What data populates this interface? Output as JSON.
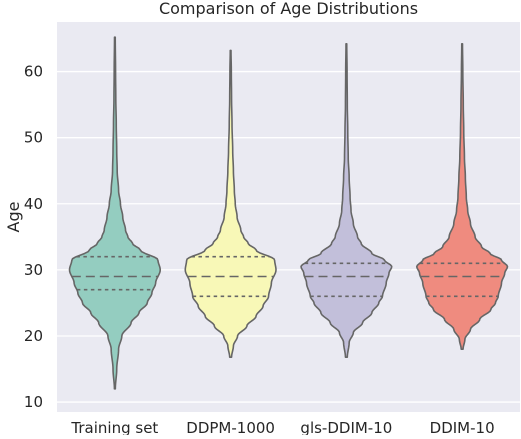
{
  "chart_data": {
    "type": "violin",
    "title": "Comparison of Age Distributions",
    "xlabel": "",
    "ylabel": "Age",
    "ylim": [
      8.5,
      67.5
    ],
    "yticks": [
      10,
      20,
      30,
      40,
      50,
      60
    ],
    "grid": true,
    "colors": {
      "background": "#eaeaf2",
      "grid": "#ffffff",
      "outline": "#666666",
      "text": "#262626"
    },
    "categories": [
      "Training set",
      "DDPM-1000",
      "gls-DDIM-10",
      "DDIM-10"
    ],
    "series": [
      {
        "color": "#94cdc0",
        "min": 12,
        "max": 65.2,
        "quartiles": [
          27,
          29,
          32
        ],
        "profile": [
          [
            12,
            0.01
          ],
          [
            15,
            0.04
          ],
          [
            18,
            0.08
          ],
          [
            20,
            0.15
          ],
          [
            22,
            0.35
          ],
          [
            23.5,
            0.52
          ],
          [
            25,
            0.7
          ],
          [
            26.5,
            0.8
          ],
          [
            28,
            0.88
          ],
          [
            30,
            0.98
          ],
          [
            31.5,
            0.93
          ],
          [
            33,
            0.55
          ],
          [
            34,
            0.38
          ],
          [
            35,
            0.28
          ],
          [
            36,
            0.23
          ],
          [
            38,
            0.17
          ],
          [
            40,
            0.12
          ],
          [
            42,
            0.08
          ],
          [
            45,
            0.05
          ],
          [
            48,
            0.04
          ],
          [
            52,
            0.03
          ],
          [
            56,
            0.02
          ],
          [
            60,
            0.015
          ],
          [
            65.2,
            0.008
          ]
        ]
      },
      {
        "color": "#f8f8b7",
        "min": 16.8,
        "max": 63.2,
        "quartiles": [
          26,
          29,
          32
        ],
        "profile": [
          [
            16.8,
            0.02
          ],
          [
            18.5,
            0.06
          ],
          [
            20,
            0.15
          ],
          [
            21.5,
            0.35
          ],
          [
            23,
            0.55
          ],
          [
            24.5,
            0.7
          ],
          [
            26,
            0.82
          ],
          [
            28,
            0.88
          ],
          [
            30,
            0.98
          ],
          [
            31.5,
            0.95
          ],
          [
            33,
            0.55
          ],
          [
            34,
            0.38
          ],
          [
            35,
            0.28
          ],
          [
            36,
            0.22
          ],
          [
            38,
            0.14
          ],
          [
            40,
            0.1
          ],
          [
            42,
            0.08
          ],
          [
            45,
            0.06
          ],
          [
            48,
            0.045
          ],
          [
            52,
            0.03
          ],
          [
            56,
            0.02
          ],
          [
            60,
            0.015
          ],
          [
            63.2,
            0.008
          ]
        ]
      },
      {
        "color": "#c2bfda",
        "min": 16.8,
        "max": 64.2,
        "quartiles": [
          26,
          29,
          31
        ],
        "profile": [
          [
            16.8,
            0.02
          ],
          [
            19,
            0.06
          ],
          [
            20.5,
            0.15
          ],
          [
            22,
            0.35
          ],
          [
            23.5,
            0.55
          ],
          [
            25,
            0.7
          ],
          [
            26,
            0.78
          ],
          [
            28,
            0.86
          ],
          [
            29.5,
            0.92
          ],
          [
            30.5,
            0.98
          ],
          [
            31.5,
            0.82
          ],
          [
            32.5,
            0.55
          ],
          [
            34,
            0.32
          ],
          [
            35,
            0.24
          ],
          [
            37,
            0.15
          ],
          [
            39,
            0.1
          ],
          [
            41,
            0.08
          ],
          [
            44,
            0.06
          ],
          [
            47,
            0.04
          ],
          [
            51,
            0.03
          ],
          [
            55,
            0.02
          ],
          [
            60,
            0.015
          ],
          [
            64.2,
            0.008
          ]
        ]
      },
      {
        "color": "#ef8b7f",
        "min": 18,
        "max": 64.2,
        "quartiles": [
          26,
          29,
          31
        ],
        "profile": [
          [
            18,
            0.02
          ],
          [
            19.5,
            0.06
          ],
          [
            21,
            0.18
          ],
          [
            22.5,
            0.38
          ],
          [
            24,
            0.62
          ],
          [
            25,
            0.72
          ],
          [
            26,
            0.78
          ],
          [
            28,
            0.85
          ],
          [
            29.5,
            0.92
          ],
          [
            30.5,
            0.98
          ],
          [
            31.5,
            0.85
          ],
          [
            32.5,
            0.6
          ],
          [
            33.5,
            0.42
          ],
          [
            35,
            0.28
          ],
          [
            37,
            0.18
          ],
          [
            39,
            0.12
          ],
          [
            41,
            0.09
          ],
          [
            44,
            0.07
          ],
          [
            47,
            0.05
          ],
          [
            51,
            0.035
          ],
          [
            55,
            0.025
          ],
          [
            60,
            0.015
          ],
          [
            64.2,
            0.008
          ]
        ]
      }
    ]
  }
}
